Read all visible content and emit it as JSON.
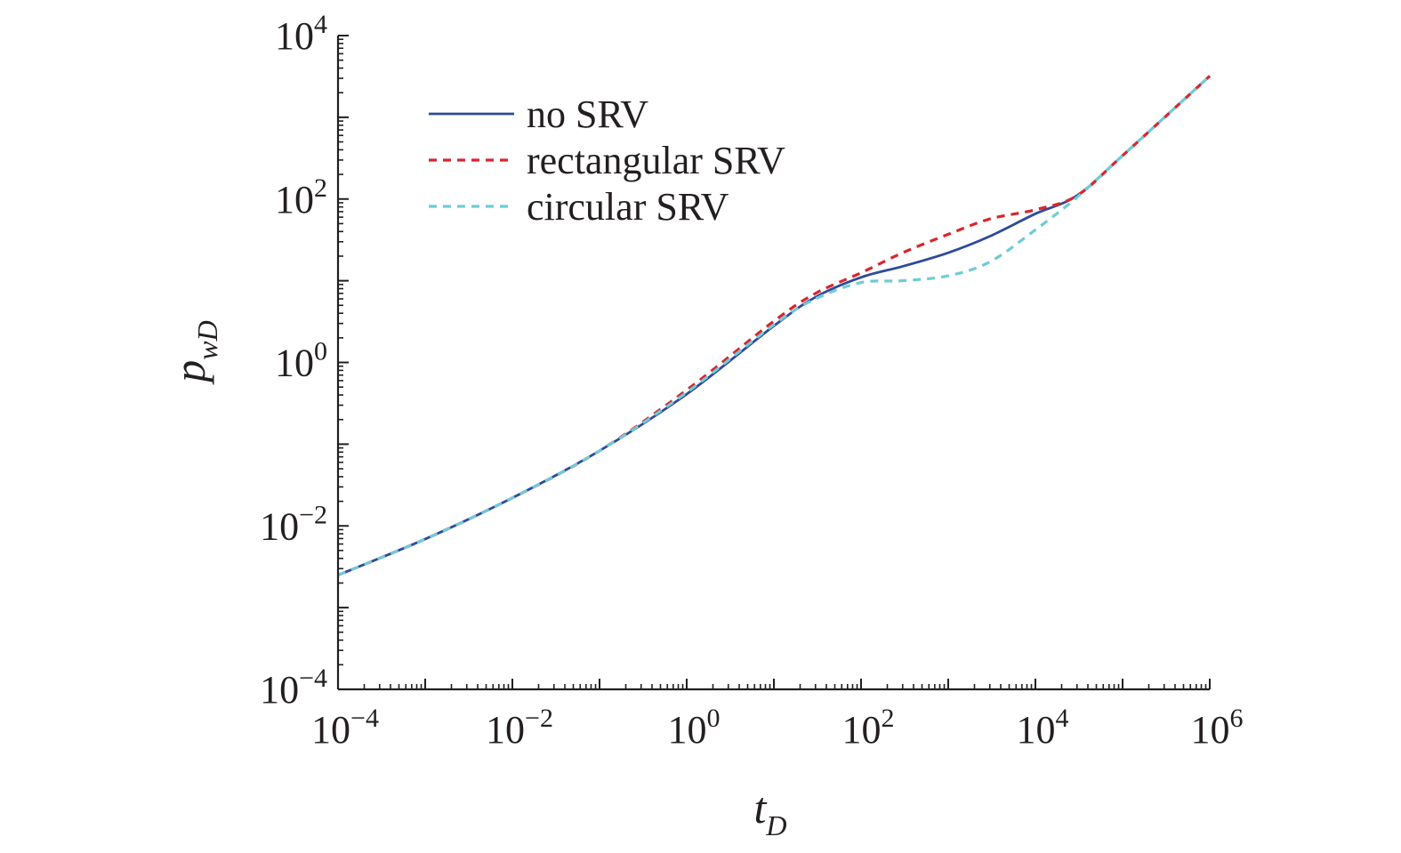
{
  "chart_data": {
    "type": "line",
    "xlabel": {
      "base": "t",
      "sub": "D"
    },
    "ylabel": {
      "base": "p",
      "sub": "wD"
    },
    "x_scale": "log",
    "y_scale": "log",
    "xlim": [
      0.0001,
      1000000
    ],
    "ylim": [
      0.0001,
      10000
    ],
    "x_ticks": [
      {
        "base": "10",
        "exp": "−4"
      },
      {
        "base": "10",
        "exp": "−2"
      },
      {
        "base": "10",
        "exp": "0"
      },
      {
        "base": "10",
        "exp": "2"
      },
      {
        "base": "10",
        "exp": "4"
      },
      {
        "base": "10",
        "exp": "6"
      }
    ],
    "y_ticks": [
      {
        "base": "10",
        "exp": "−4"
      },
      {
        "base": "10",
        "exp": "−2"
      },
      {
        "base": "10",
        "exp": "0"
      },
      {
        "base": "10",
        "exp": "2"
      },
      {
        "base": "10",
        "exp": "4"
      }
    ],
    "grid": false,
    "legend_position": "top-left",
    "series": [
      {
        "name": "no SRV",
        "color": "#2e4a9a",
        "style": "solid",
        "points": [
          [
            0.0001,
            0.0025
          ],
          [
            0.001,
            0.0069
          ],
          [
            0.01,
            0.022
          ],
          [
            0.1,
            0.083
          ],
          [
            1,
            0.41
          ],
          [
            10,
            2.8
          ],
          [
            30,
            6.3
          ],
          [
            100,
            11
          ],
          [
            300,
            15
          ],
          [
            1000,
            22
          ],
          [
            3000,
            35
          ],
          [
            10000,
            66
          ],
          [
            30000,
            110
          ],
          [
            100000,
            340
          ],
          [
            1000000,
            3200
          ]
        ]
      },
      {
        "name": "rectangular SRV",
        "color": "#d9262e",
        "style": "dashed",
        "points": [
          [
            0.0001,
            0.0025
          ],
          [
            0.001,
            0.0069
          ],
          [
            0.01,
            0.022
          ],
          [
            0.1,
            0.083
          ],
          [
            1,
            0.46
          ],
          [
            10,
            3.2
          ],
          [
            30,
            7.0
          ],
          [
            100,
            12.5
          ],
          [
            300,
            22
          ],
          [
            1000,
            37
          ],
          [
            3000,
            57
          ],
          [
            10000,
            74
          ],
          [
            30000,
            110
          ],
          [
            100000,
            340
          ],
          [
            1000000,
            3200
          ]
        ]
      },
      {
        "name": "circular SRV",
        "color": "#6fcbd6",
        "style": "dashed",
        "points": [
          [
            0.0001,
            0.0025
          ],
          [
            0.001,
            0.0069
          ],
          [
            0.01,
            0.022
          ],
          [
            0.1,
            0.083
          ],
          [
            1,
            0.43
          ],
          [
            10,
            2.9
          ],
          [
            30,
            6.0
          ],
          [
            100,
            9.5
          ],
          [
            300,
            10
          ],
          [
            1000,
            11.5
          ],
          [
            3000,
            17
          ],
          [
            10000,
            42
          ],
          [
            30000,
            105
          ],
          [
            100000,
            340
          ],
          [
            1000000,
            3200
          ]
        ]
      }
    ]
  }
}
